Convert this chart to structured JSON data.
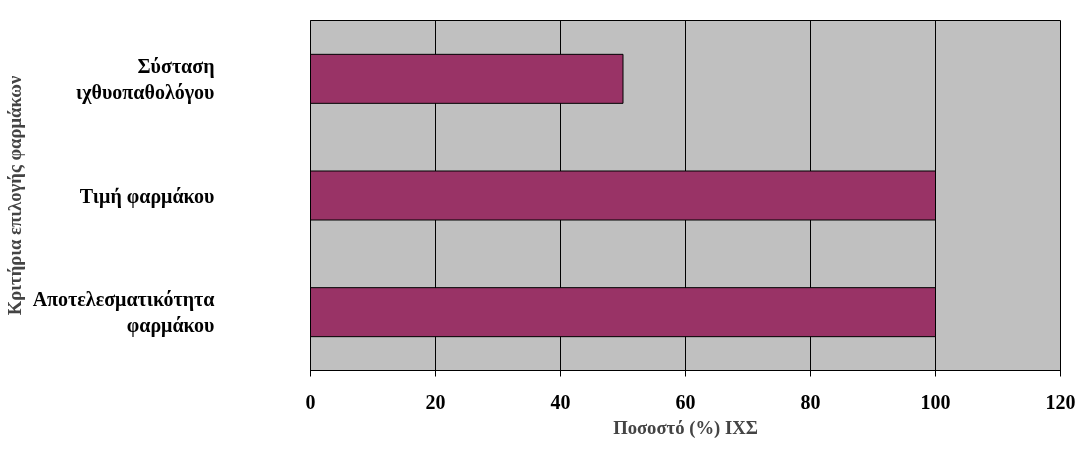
{
  "chart_data": {
    "type": "bar",
    "orientation": "horizontal",
    "xlabel": "Ποσοστό (%) ΙΧΣ",
    "ylabel": "Κριτήρια επιλογής φαρμάκων",
    "categories": [
      "Σύσταση ιχθυοπαθολόγου",
      "Τιμή φαρμάκου",
      "Αποτελεσματικότητα φαρμάκου"
    ],
    "values": [
      50,
      100,
      100
    ],
    "color": "#993366",
    "xlim": [
      0,
      120
    ],
    "xticks": [
      0,
      20,
      40,
      60,
      80,
      100,
      120
    ],
    "grid": "x"
  }
}
